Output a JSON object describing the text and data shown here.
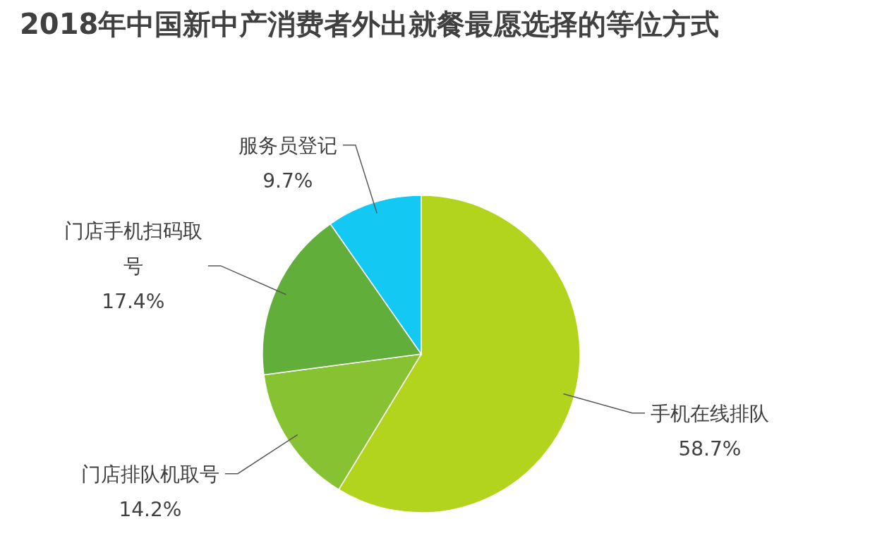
{
  "chart_data": {
    "type": "pie",
    "title": "2018年中国新中产消费者外出就餐最愿选择的等位方式",
    "categories": [
      "手机在线排队",
      "门店排队机取号",
      "门店手机扫码取号",
      "服务员登记"
    ],
    "values": [
      58.7,
      14.2,
      17.4,
      9.7
    ],
    "value_labels": [
      "58.7%",
      "14.2%",
      "17.4%",
      "9.7%"
    ],
    "colors": [
      "#b3d41c",
      "#86c232",
      "#62ae3a",
      "#14c8f4"
    ]
  }
}
